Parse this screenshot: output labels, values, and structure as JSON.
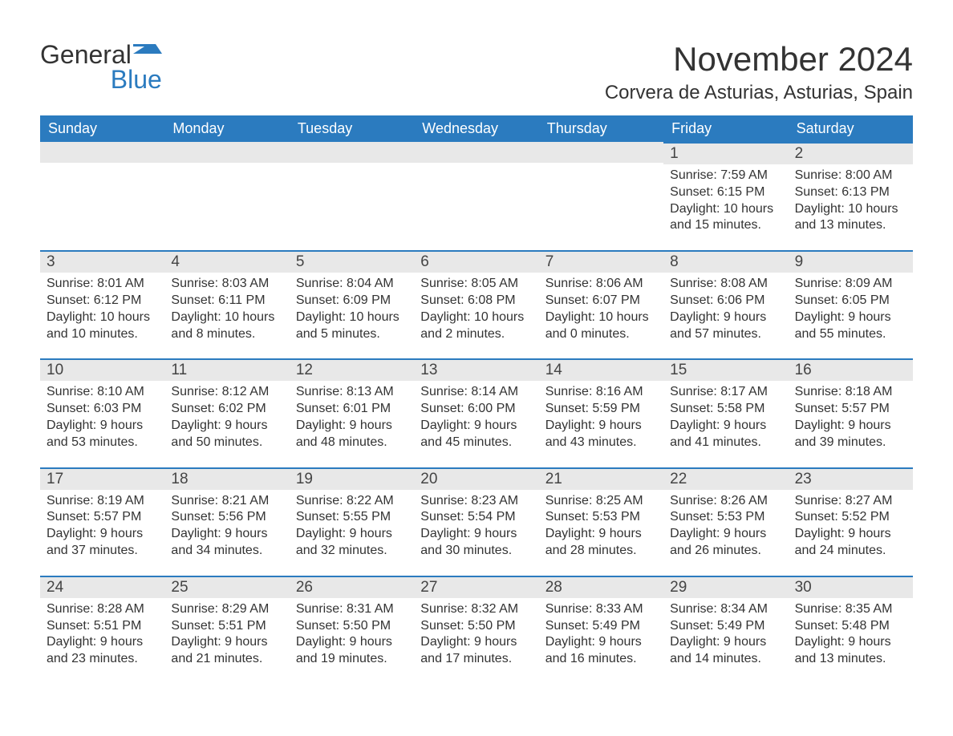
{
  "logo": {
    "text_general": "General",
    "text_blue": "Blue",
    "icon_color": "#2b7bbf"
  },
  "header": {
    "month_title": "November 2024",
    "location": "Corvera de Asturias, Asturias, Spain"
  },
  "colors": {
    "header_bg": "#2b7bbf",
    "day_num_bg": "#e8e8e8",
    "day_border": "#2b7bbf",
    "text": "#333333"
  },
  "day_names": [
    "Sunday",
    "Monday",
    "Tuesday",
    "Wednesday",
    "Thursday",
    "Friday",
    "Saturday"
  ],
  "weeks": [
    [
      {
        "empty": true
      },
      {
        "empty": true
      },
      {
        "empty": true
      },
      {
        "empty": true
      },
      {
        "empty": true
      },
      {
        "day": "1",
        "sunrise": "Sunrise: 7:59 AM",
        "sunset": "Sunset: 6:15 PM",
        "daylight1": "Daylight: 10 hours",
        "daylight2": "and 15 minutes."
      },
      {
        "day": "2",
        "sunrise": "Sunrise: 8:00 AM",
        "sunset": "Sunset: 6:13 PM",
        "daylight1": "Daylight: 10 hours",
        "daylight2": "and 13 minutes."
      }
    ],
    [
      {
        "day": "3",
        "sunrise": "Sunrise: 8:01 AM",
        "sunset": "Sunset: 6:12 PM",
        "daylight1": "Daylight: 10 hours",
        "daylight2": "and 10 minutes."
      },
      {
        "day": "4",
        "sunrise": "Sunrise: 8:03 AM",
        "sunset": "Sunset: 6:11 PM",
        "daylight1": "Daylight: 10 hours",
        "daylight2": "and 8 minutes."
      },
      {
        "day": "5",
        "sunrise": "Sunrise: 8:04 AM",
        "sunset": "Sunset: 6:09 PM",
        "daylight1": "Daylight: 10 hours",
        "daylight2": "and 5 minutes."
      },
      {
        "day": "6",
        "sunrise": "Sunrise: 8:05 AM",
        "sunset": "Sunset: 6:08 PM",
        "daylight1": "Daylight: 10 hours",
        "daylight2": "and 2 minutes."
      },
      {
        "day": "7",
        "sunrise": "Sunrise: 8:06 AM",
        "sunset": "Sunset: 6:07 PM",
        "daylight1": "Daylight: 10 hours",
        "daylight2": "and 0 minutes."
      },
      {
        "day": "8",
        "sunrise": "Sunrise: 8:08 AM",
        "sunset": "Sunset: 6:06 PM",
        "daylight1": "Daylight: 9 hours",
        "daylight2": "and 57 minutes."
      },
      {
        "day": "9",
        "sunrise": "Sunrise: 8:09 AM",
        "sunset": "Sunset: 6:05 PM",
        "daylight1": "Daylight: 9 hours",
        "daylight2": "and 55 minutes."
      }
    ],
    [
      {
        "day": "10",
        "sunrise": "Sunrise: 8:10 AM",
        "sunset": "Sunset: 6:03 PM",
        "daylight1": "Daylight: 9 hours",
        "daylight2": "and 53 minutes."
      },
      {
        "day": "11",
        "sunrise": "Sunrise: 8:12 AM",
        "sunset": "Sunset: 6:02 PM",
        "daylight1": "Daylight: 9 hours",
        "daylight2": "and 50 minutes."
      },
      {
        "day": "12",
        "sunrise": "Sunrise: 8:13 AM",
        "sunset": "Sunset: 6:01 PM",
        "daylight1": "Daylight: 9 hours",
        "daylight2": "and 48 minutes."
      },
      {
        "day": "13",
        "sunrise": "Sunrise: 8:14 AM",
        "sunset": "Sunset: 6:00 PM",
        "daylight1": "Daylight: 9 hours",
        "daylight2": "and 45 minutes."
      },
      {
        "day": "14",
        "sunrise": "Sunrise: 8:16 AM",
        "sunset": "Sunset: 5:59 PM",
        "daylight1": "Daylight: 9 hours",
        "daylight2": "and 43 minutes."
      },
      {
        "day": "15",
        "sunrise": "Sunrise: 8:17 AM",
        "sunset": "Sunset: 5:58 PM",
        "daylight1": "Daylight: 9 hours",
        "daylight2": "and 41 minutes."
      },
      {
        "day": "16",
        "sunrise": "Sunrise: 8:18 AM",
        "sunset": "Sunset: 5:57 PM",
        "daylight1": "Daylight: 9 hours",
        "daylight2": "and 39 minutes."
      }
    ],
    [
      {
        "day": "17",
        "sunrise": "Sunrise: 8:19 AM",
        "sunset": "Sunset: 5:57 PM",
        "daylight1": "Daylight: 9 hours",
        "daylight2": "and 37 minutes."
      },
      {
        "day": "18",
        "sunrise": "Sunrise: 8:21 AM",
        "sunset": "Sunset: 5:56 PM",
        "daylight1": "Daylight: 9 hours",
        "daylight2": "and 34 minutes."
      },
      {
        "day": "19",
        "sunrise": "Sunrise: 8:22 AM",
        "sunset": "Sunset: 5:55 PM",
        "daylight1": "Daylight: 9 hours",
        "daylight2": "and 32 minutes."
      },
      {
        "day": "20",
        "sunrise": "Sunrise: 8:23 AM",
        "sunset": "Sunset: 5:54 PM",
        "daylight1": "Daylight: 9 hours",
        "daylight2": "and 30 minutes."
      },
      {
        "day": "21",
        "sunrise": "Sunrise: 8:25 AM",
        "sunset": "Sunset: 5:53 PM",
        "daylight1": "Daylight: 9 hours",
        "daylight2": "and 28 minutes."
      },
      {
        "day": "22",
        "sunrise": "Sunrise: 8:26 AM",
        "sunset": "Sunset: 5:53 PM",
        "daylight1": "Daylight: 9 hours",
        "daylight2": "and 26 minutes."
      },
      {
        "day": "23",
        "sunrise": "Sunrise: 8:27 AM",
        "sunset": "Sunset: 5:52 PM",
        "daylight1": "Daylight: 9 hours",
        "daylight2": "and 24 minutes."
      }
    ],
    [
      {
        "day": "24",
        "sunrise": "Sunrise: 8:28 AM",
        "sunset": "Sunset: 5:51 PM",
        "daylight1": "Daylight: 9 hours",
        "daylight2": "and 23 minutes."
      },
      {
        "day": "25",
        "sunrise": "Sunrise: 8:29 AM",
        "sunset": "Sunset: 5:51 PM",
        "daylight1": "Daylight: 9 hours",
        "daylight2": "and 21 minutes."
      },
      {
        "day": "26",
        "sunrise": "Sunrise: 8:31 AM",
        "sunset": "Sunset: 5:50 PM",
        "daylight1": "Daylight: 9 hours",
        "daylight2": "and 19 minutes."
      },
      {
        "day": "27",
        "sunrise": "Sunrise: 8:32 AM",
        "sunset": "Sunset: 5:50 PM",
        "daylight1": "Daylight: 9 hours",
        "daylight2": "and 17 minutes."
      },
      {
        "day": "28",
        "sunrise": "Sunrise: 8:33 AM",
        "sunset": "Sunset: 5:49 PM",
        "daylight1": "Daylight: 9 hours",
        "daylight2": "and 16 minutes."
      },
      {
        "day": "29",
        "sunrise": "Sunrise: 8:34 AM",
        "sunset": "Sunset: 5:49 PM",
        "daylight1": "Daylight: 9 hours",
        "daylight2": "and 14 minutes."
      },
      {
        "day": "30",
        "sunrise": "Sunrise: 8:35 AM",
        "sunset": "Sunset: 5:48 PM",
        "daylight1": "Daylight: 9 hours",
        "daylight2": "and 13 minutes."
      }
    ]
  ]
}
